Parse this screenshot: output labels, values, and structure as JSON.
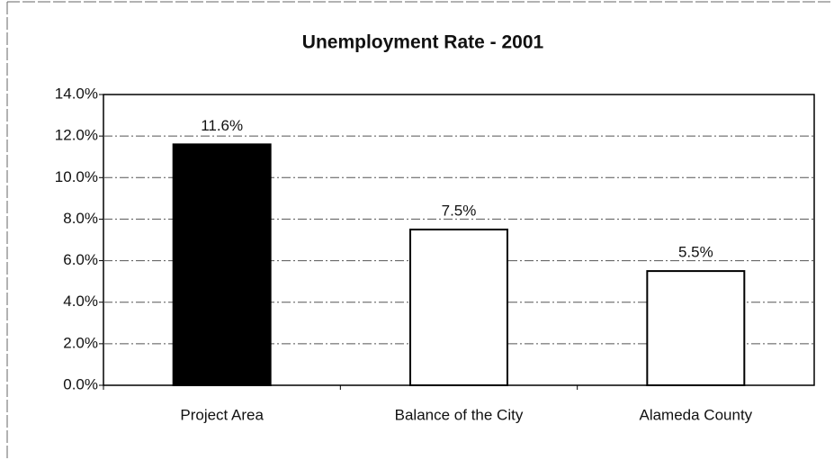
{
  "chart_data": {
    "type": "bar",
    "title": "Unemployment Rate - 2001",
    "categories": [
      "Project Area",
      "Balance of the City",
      "Alameda County"
    ],
    "values": [
      11.6,
      7.5,
      5.5
    ],
    "value_labels": [
      "11.6%",
      "7.5%",
      "5.5%"
    ],
    "colors": [
      "#000000",
      "#ffffff",
      "#ffffff"
    ],
    "ylim": [
      0,
      14
    ],
    "yticks": [
      {
        "value": 0,
        "label": "0.0%"
      },
      {
        "value": 2,
        "label": "2.0%"
      },
      {
        "value": 4,
        "label": "4.0%"
      },
      {
        "value": 6,
        "label": "6.0%"
      },
      {
        "value": 8,
        "label": "8.0%"
      },
      {
        "value": 10,
        "label": "10.0%"
      },
      {
        "value": 12,
        "label": "12.0%"
      },
      {
        "value": 14,
        "label": "14.0%"
      }
    ],
    "grid": true
  }
}
